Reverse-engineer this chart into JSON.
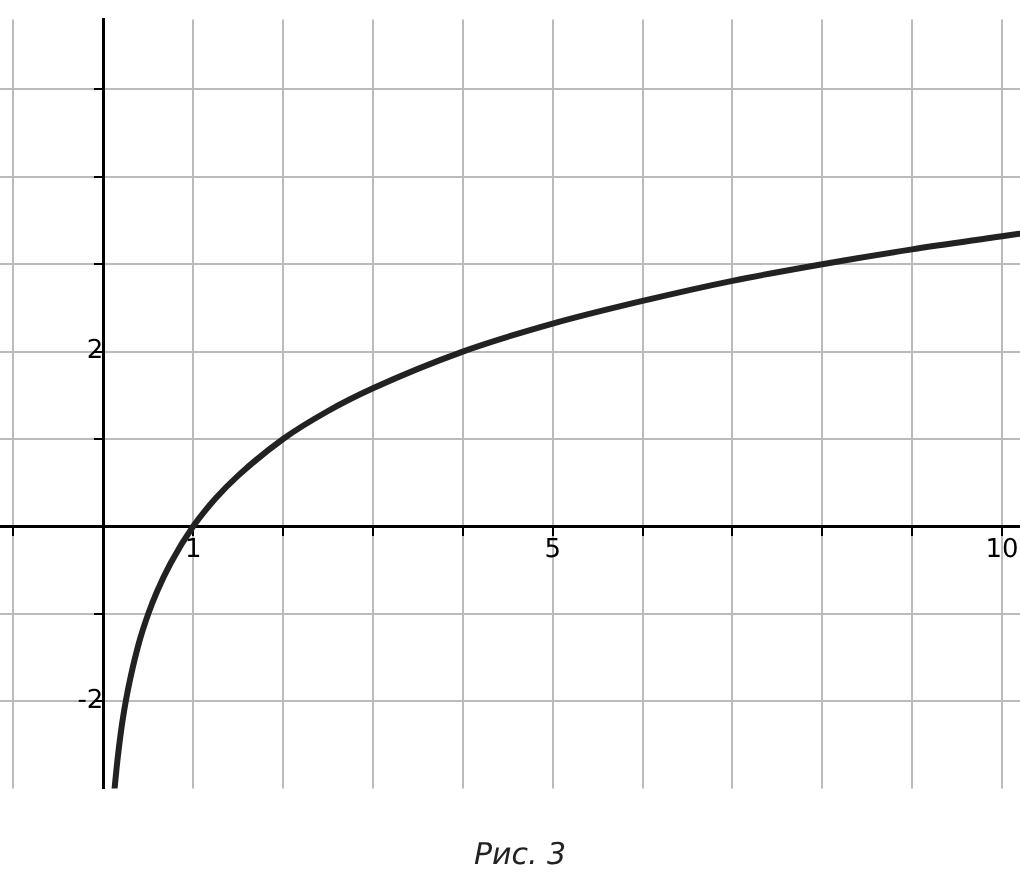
{
  "chart_data": {
    "type": "line",
    "x": [
      0.125,
      0.15,
      0.2,
      0.25,
      0.3,
      0.4,
      0.5,
      0.6,
      0.75,
      1,
      1.25,
      1.5,
      2,
      2.5,
      3,
      4,
      5,
      6,
      7,
      8,
      9,
      10,
      10.2
    ],
    "series": [
      {
        "color": "#222222",
        "values": [
          -3,
          -2.74,
          -2.32,
          -2,
          -1.74,
          -1.32,
          -1,
          -0.74,
          -0.42,
          0,
          0.32,
          0.58,
          1,
          1.32,
          1.58,
          2,
          2.32,
          2.58,
          2.81,
          3,
          3.17,
          3.32,
          3.35
        ]
      }
    ],
    "xlim": [
      -1.15,
      10.2
    ],
    "ylim": [
      -3,
      5.8
    ],
    "xticks": [
      {
        "value": -1,
        "label": null
      },
      {
        "value": 0,
        "label": null
      },
      1,
      {
        "value": 2,
        "label": null
      },
      {
        "value": 3,
        "label": null
      },
      {
        "value": 4,
        "label": null
      },
      5,
      {
        "value": 6,
        "label": null
      },
      {
        "value": 7,
        "label": null
      },
      {
        "value": 8,
        "label": null
      },
      {
        "value": 9,
        "label": null
      },
      10
    ],
    "yticks": [
      -2,
      {
        "value": -1,
        "label": null
      },
      {
        "value": 0,
        "label": null
      },
      {
        "value": 1,
        "label": null
      },
      2,
      {
        "value": 3,
        "label": null
      },
      {
        "value": 4,
        "label": null
      },
      {
        "value": 5,
        "label": null
      }
    ],
    "grid": true,
    "marker": "none",
    "line_style": "solid",
    "legend": false,
    "annotations": [
      "Рис. 3"
    ]
  }
}
